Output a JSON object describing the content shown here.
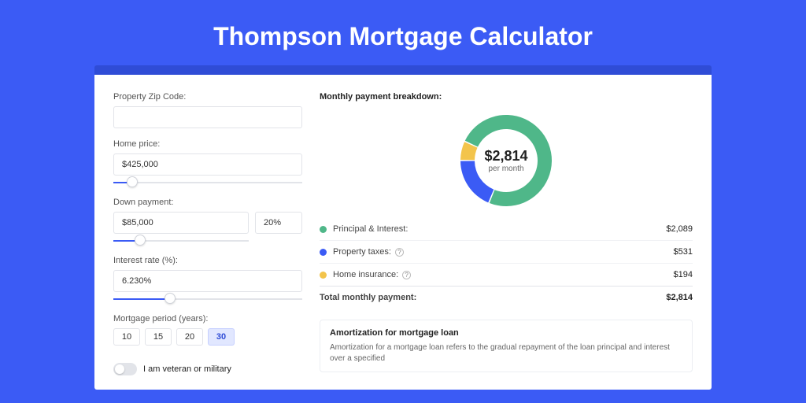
{
  "title": "Thompson Mortgage Calculator",
  "colors": {
    "page_bg": "#3b5bf5",
    "header_stripe": "#2f4cd6",
    "panel_bg": "#ffffff",
    "border": "#e2e4e9",
    "slider_fill": "#3b5bf5",
    "period_active_bg": "#e1e7ff",
    "period_active_text": "#2f4cd6"
  },
  "left": {
    "zip": {
      "label": "Property Zip Code:",
      "value": ""
    },
    "home_price": {
      "label": "Home price:",
      "value": "$425,000",
      "slider_pct": 10
    },
    "down_payment": {
      "label": "Down payment:",
      "value": "$85,000",
      "pct": "20%",
      "slider_pct": 20
    },
    "interest_rate": {
      "label": "Interest rate (%):",
      "value": "6.230%",
      "slider_pct": 30
    },
    "period": {
      "label": "Mortgage period (years):",
      "options": [
        "10",
        "15",
        "20",
        "30"
      ],
      "active": "30"
    },
    "veteran": {
      "label": "I am veteran or military",
      "on": false
    }
  },
  "breakdown": {
    "title": "Monthly payment breakdown:",
    "center_value": "$2,814",
    "center_sub": "per month",
    "donut": {
      "type": "donut",
      "slices": [
        {
          "label": "Principal & Interest:",
          "value": 2089,
          "display": "$2,089",
          "color": "#4fb789"
        },
        {
          "label": "Property taxes:",
          "value": 531,
          "display": "$531",
          "color": "#3b5bf5",
          "info": true
        },
        {
          "label": "Home insurance:",
          "value": 194,
          "display": "$194",
          "color": "#f3c44b",
          "info": true
        }
      ],
      "ring_thickness": 18,
      "outer_radius": 58,
      "start_angle": -155
    },
    "total": {
      "label": "Total monthly payment:",
      "display": "$2,814"
    }
  },
  "amortization": {
    "title": "Amortization for mortgage loan",
    "body": "Amortization for a mortgage loan refers to the gradual repayment of the loan principal and interest over a specified"
  }
}
